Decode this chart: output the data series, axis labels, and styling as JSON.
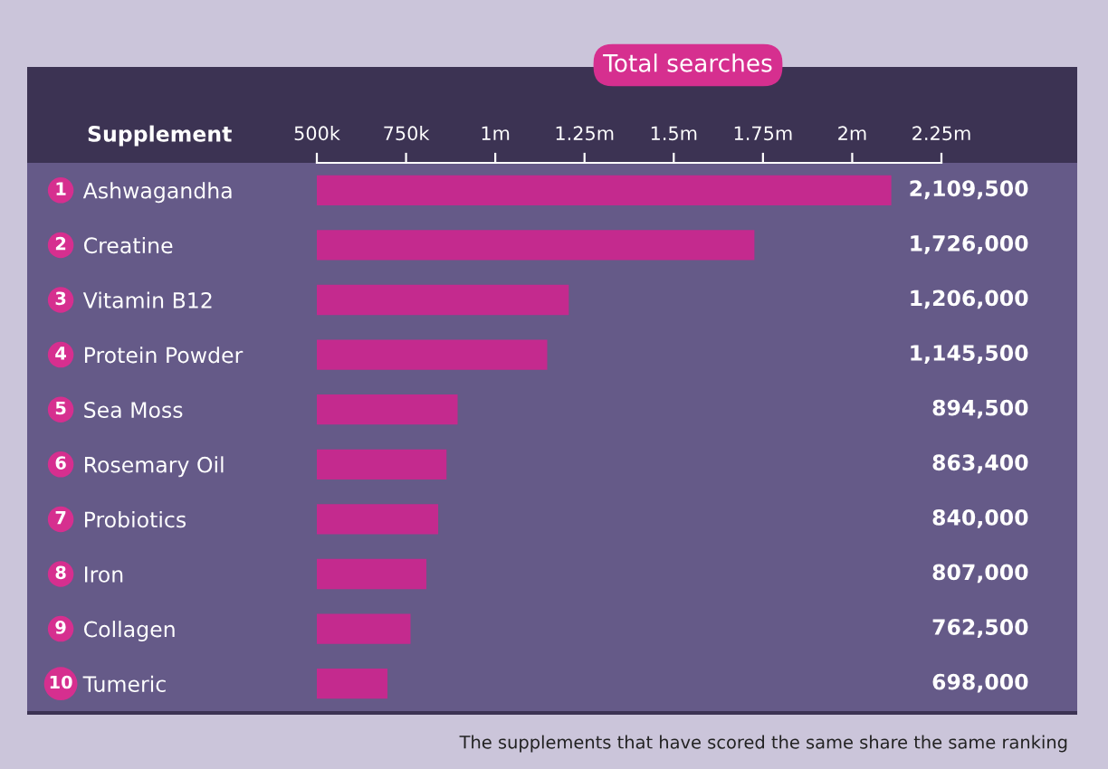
{
  "chart_data": {
    "type": "bar",
    "orientation": "horizontal",
    "title": "Total searches",
    "ylabel": "Supplement",
    "categories": [
      "Ashwagandha",
      "Creatine",
      "Vitamin B12",
      "Protein Powder",
      "Sea Moss",
      "Rosemary Oil",
      "Probiotics",
      "Iron",
      "Collagen",
      "Tumeric"
    ],
    "values": [
      2109500,
      1726000,
      1206000,
      1145500,
      894500,
      863400,
      840000,
      807000,
      762500,
      698000
    ],
    "value_labels": [
      "2,109,500",
      "1,726,000",
      "1,206,000",
      "1,145,500",
      "894,500",
      "863,400",
      "840,000",
      "807,000",
      "762,500",
      "698,000"
    ],
    "color": "#c42a8e",
    "xlim": [
      500000,
      2250000
    ],
    "xticks": [
      {
        "value": 500000,
        "label": "500k"
      },
      {
        "value": 750000,
        "label": "750k"
      },
      {
        "value": 1000000,
        "label": "1m"
      },
      {
        "value": 1250000,
        "label": "1.25m"
      },
      {
        "value": 1500000,
        "label": "1.5m"
      },
      {
        "value": 1750000,
        "label": "1.75m"
      },
      {
        "value": 2000000,
        "label": "2m"
      },
      {
        "value": 2250000,
        "label": "2.25m"
      }
    ],
    "grid": false,
    "legend": false,
    "annotations": [
      "1",
      "2",
      "3",
      "4",
      "5",
      "6",
      "7",
      "8",
      "9",
      "10",
      "The supplements that have scored the same share the same ranking"
    ]
  }
}
